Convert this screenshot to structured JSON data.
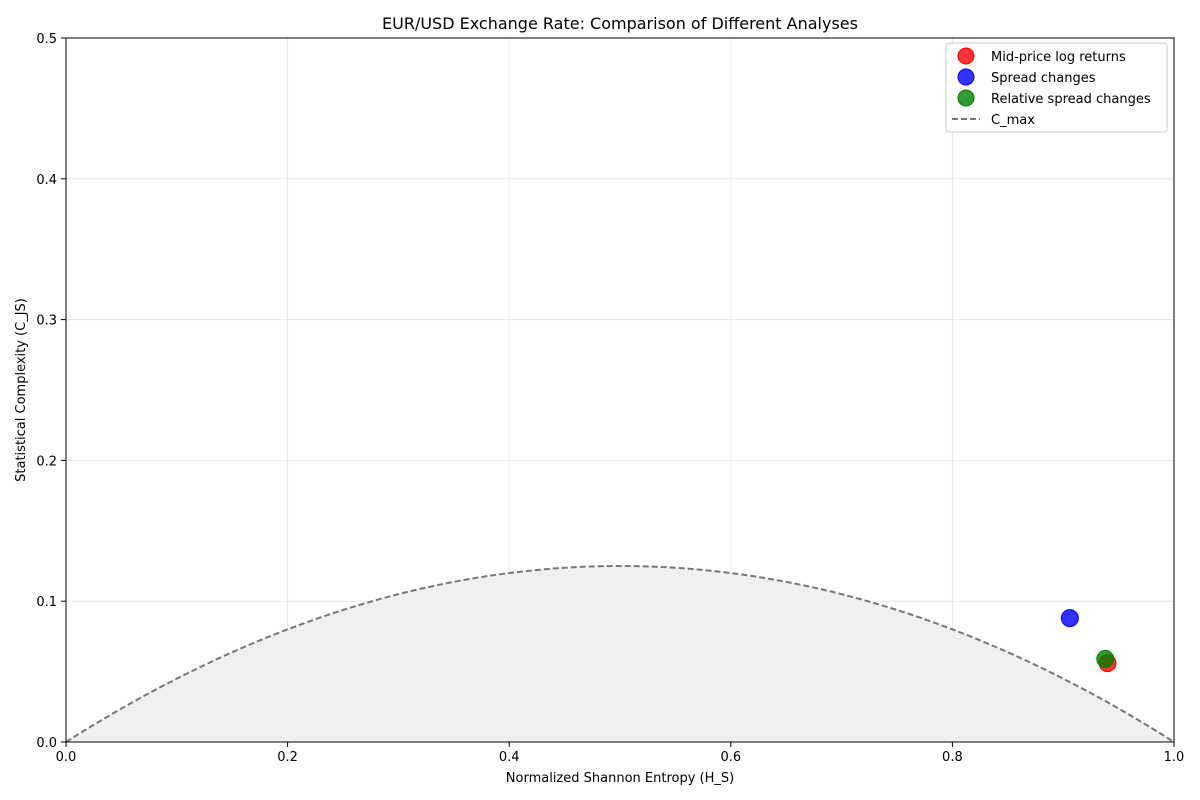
{
  "chart_data": {
    "type": "scatter",
    "title": "EUR/USD Exchange Rate: Comparison of Different Analyses",
    "xlabel": "Normalized Shannon Entropy (H_S)",
    "ylabel": "Statistical Complexity (C_JS)",
    "xlim": [
      0.0,
      1.0
    ],
    "ylim": [
      0.0,
      0.5
    ],
    "xticks": [
      "0.0",
      "0.2",
      "0.4",
      "0.6",
      "0.8",
      "1.0"
    ],
    "yticks": [
      "0.0",
      "0.1",
      "0.2",
      "0.3",
      "0.4",
      "0.5"
    ],
    "grid": true,
    "legend_position": "top-right",
    "series": [
      {
        "name": "Mid-price log returns",
        "color": "#ff0000",
        "x": [
          0.94
        ],
        "y": [
          0.056
        ]
      },
      {
        "name": "Spread changes",
        "color": "#0000ff",
        "x": [
          0.906
        ],
        "y": [
          0.088
        ]
      },
      {
        "name": "Relative spread changes",
        "color": "#008000",
        "x": [
          0.938
        ],
        "y": [
          0.059
        ]
      }
    ],
    "curve": {
      "name": "C_max",
      "color": "#777777",
      "style": "dashed",
      "peak": {
        "x": 0.5,
        "y": 0.125
      },
      "fill": "#f0f0f0"
    }
  }
}
